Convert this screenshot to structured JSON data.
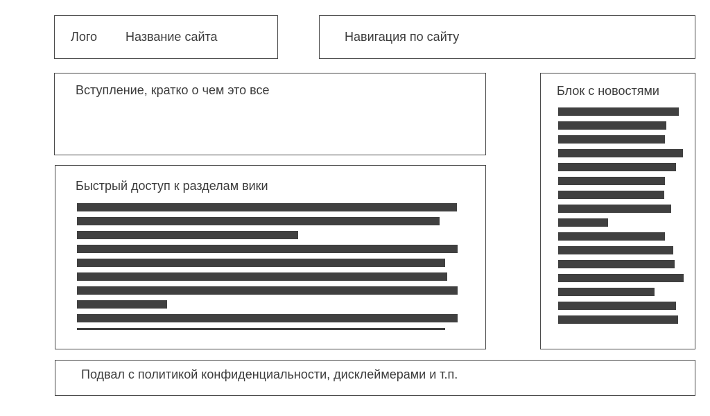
{
  "header": {
    "logo": "Лого",
    "site_name": "Название сайта",
    "navigation": "Навигация по сайту"
  },
  "intro": {
    "title": "Вступление, кратко о чем это все"
  },
  "quick_access": {
    "title": "Быстрый доступ к разделам вики",
    "placeholder_lines": 10
  },
  "news": {
    "title": "Блок с новостями",
    "placeholder_lines": 16
  },
  "footer": {
    "text": "Подвал с политикой конфиденциальности, дисклеймерами и т.п."
  },
  "colors": {
    "border": "#4a4a4a",
    "placeholder": "#404040",
    "text": "#3c3c3c"
  }
}
